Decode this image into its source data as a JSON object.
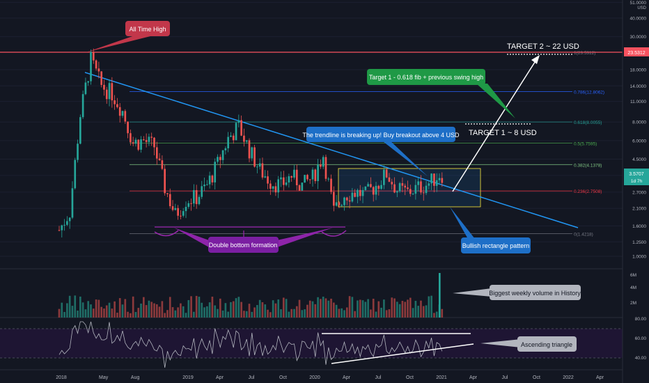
{
  "chart_data": {
    "type": "candlestick",
    "x_axis_ticks": [
      "2018",
      "May",
      "Aug",
      "2019",
      "Apr",
      "Jul",
      "Oct",
      "2020",
      "Apr",
      "Jul",
      "Oct",
      "2021",
      "Apr",
      "Jul",
      "Oct",
      "2022",
      "Apr"
    ],
    "price_axis": {
      "scale": "log",
      "unit_label": "USD",
      "ticks": [
        "51.0000",
        "40.0000",
        "30.0000",
        "18.0000",
        "14.0000",
        "11.0000",
        "8.0000",
        "6.0000",
        "4.5000",
        "3.5000",
        "2.7000",
        "2.1000",
        "1.6000",
        "1.2500",
        "1.0000"
      ],
      "current_price_label": "23.5312",
      "last_price_label": "3.5707",
      "countdown_label": "1d 7h"
    },
    "all_time_high": 23.5312,
    "fib_levels": [
      {
        "label": "1(23.5312)",
        "value": 23.5312,
        "color": "#787b86"
      },
      {
        "label": "0.786(12.8062)",
        "value": 12.8062,
        "color": "#2962ff"
      },
      {
        "label": "0.618(8.0055)",
        "value": 8.0055,
        "color": "#26a69a"
      },
      {
        "label": "0.5(5.7595)",
        "value": 5.7595,
        "color": "#4caf50"
      },
      {
        "label": "0.382(4.1378)",
        "value": 4.1378,
        "color": "#81c784"
      },
      {
        "label": "0.236(2.7508)",
        "value": 2.7508,
        "color": "#f23645"
      },
      {
        "label": "0(1.4218)",
        "value": 1.4218,
        "color": "#787b86"
      }
    ],
    "price_series": [
      {
        "date": "2018-01",
        "close": 1.5
      },
      {
        "date": "2018-02",
        "close": 2.0
      },
      {
        "date": "2018-03",
        "close": 9.0
      },
      {
        "date": "2018-04",
        "close": 21.0
      },
      {
        "date": "2018-05",
        "close": 14.0
      },
      {
        "date": "2018-06",
        "close": 12.5
      },
      {
        "date": "2018-07",
        "close": 9.5
      },
      {
        "date": "2018-08",
        "close": 5.8
      },
      {
        "date": "2018-09",
        "close": 6.0
      },
      {
        "date": "2018-10",
        "close": 5.5
      },
      {
        "date": "2018-11",
        "close": 2.9
      },
      {
        "date": "2018-12",
        "close": 1.9
      },
      {
        "date": "2019-01",
        "close": 2.4
      },
      {
        "date": "2019-02",
        "close": 2.5
      },
      {
        "date": "2019-03",
        "close": 3.0
      },
      {
        "date": "2019-04",
        "close": 4.2
      },
      {
        "date": "2019-05",
        "close": 6.2
      },
      {
        "date": "2019-06",
        "close": 7.5
      },
      {
        "date": "2019-07",
        "close": 5.2
      },
      {
        "date": "2019-08",
        "close": 3.8
      },
      {
        "date": "2019-09",
        "close": 3.2
      },
      {
        "date": "2019-10",
        "close": 3.0
      },
      {
        "date": "2019-11",
        "close": 3.5
      },
      {
        "date": "2019-12",
        "close": 3.0
      },
      {
        "date": "2020-01",
        "close": 3.4
      },
      {
        "date": "2020-02",
        "close": 4.8
      },
      {
        "date": "2020-03",
        "close": 2.0
      },
      {
        "date": "2020-04",
        "close": 2.6
      },
      {
        "date": "2020-05",
        "close": 2.7
      },
      {
        "date": "2020-06",
        "close": 2.6
      },
      {
        "date": "2020-07",
        "close": 3.0
      },
      {
        "date": "2020-08",
        "close": 3.6
      },
      {
        "date": "2020-09",
        "close": 2.8
      },
      {
        "date": "2020-10",
        "close": 2.7
      },
      {
        "date": "2020-11",
        "close": 2.9
      },
      {
        "date": "2020-12",
        "close": 3.1
      },
      {
        "date": "2021-01",
        "close": 3.57
      }
    ],
    "volume_axis": {
      "ticks": [
        "6M",
        "4M",
        "2M"
      ]
    },
    "rsi_axis": {
      "ticks": [
        "80.00",
        "60.00",
        "40.00"
      ]
    }
  },
  "annotations": {
    "all_time_high": "All Time High",
    "target2": "TARGET 2 ~ 22 USD",
    "target1_callout": "Target 1 - 0.618 fib + previous swing high",
    "target1": "TARGET 1 ~ 8 USD",
    "trendline": "The trendline is breaking up! Buy breakout above 4 USD",
    "double_bottom": "Double bottom formation",
    "bullish_rectangle": "Bullish rectangle pattern",
    "volume": "Biggest weekly volume in History",
    "ascending_triangle": "Ascending triangle"
  },
  "colors": {
    "background": "#131722",
    "up": "#26a69a",
    "down": "#ef5350",
    "trendline": "#2196f3",
    "ath_line": "#f7525f",
    "rsi_band": "#1e1533",
    "rsi_line": "#b2b5be"
  }
}
